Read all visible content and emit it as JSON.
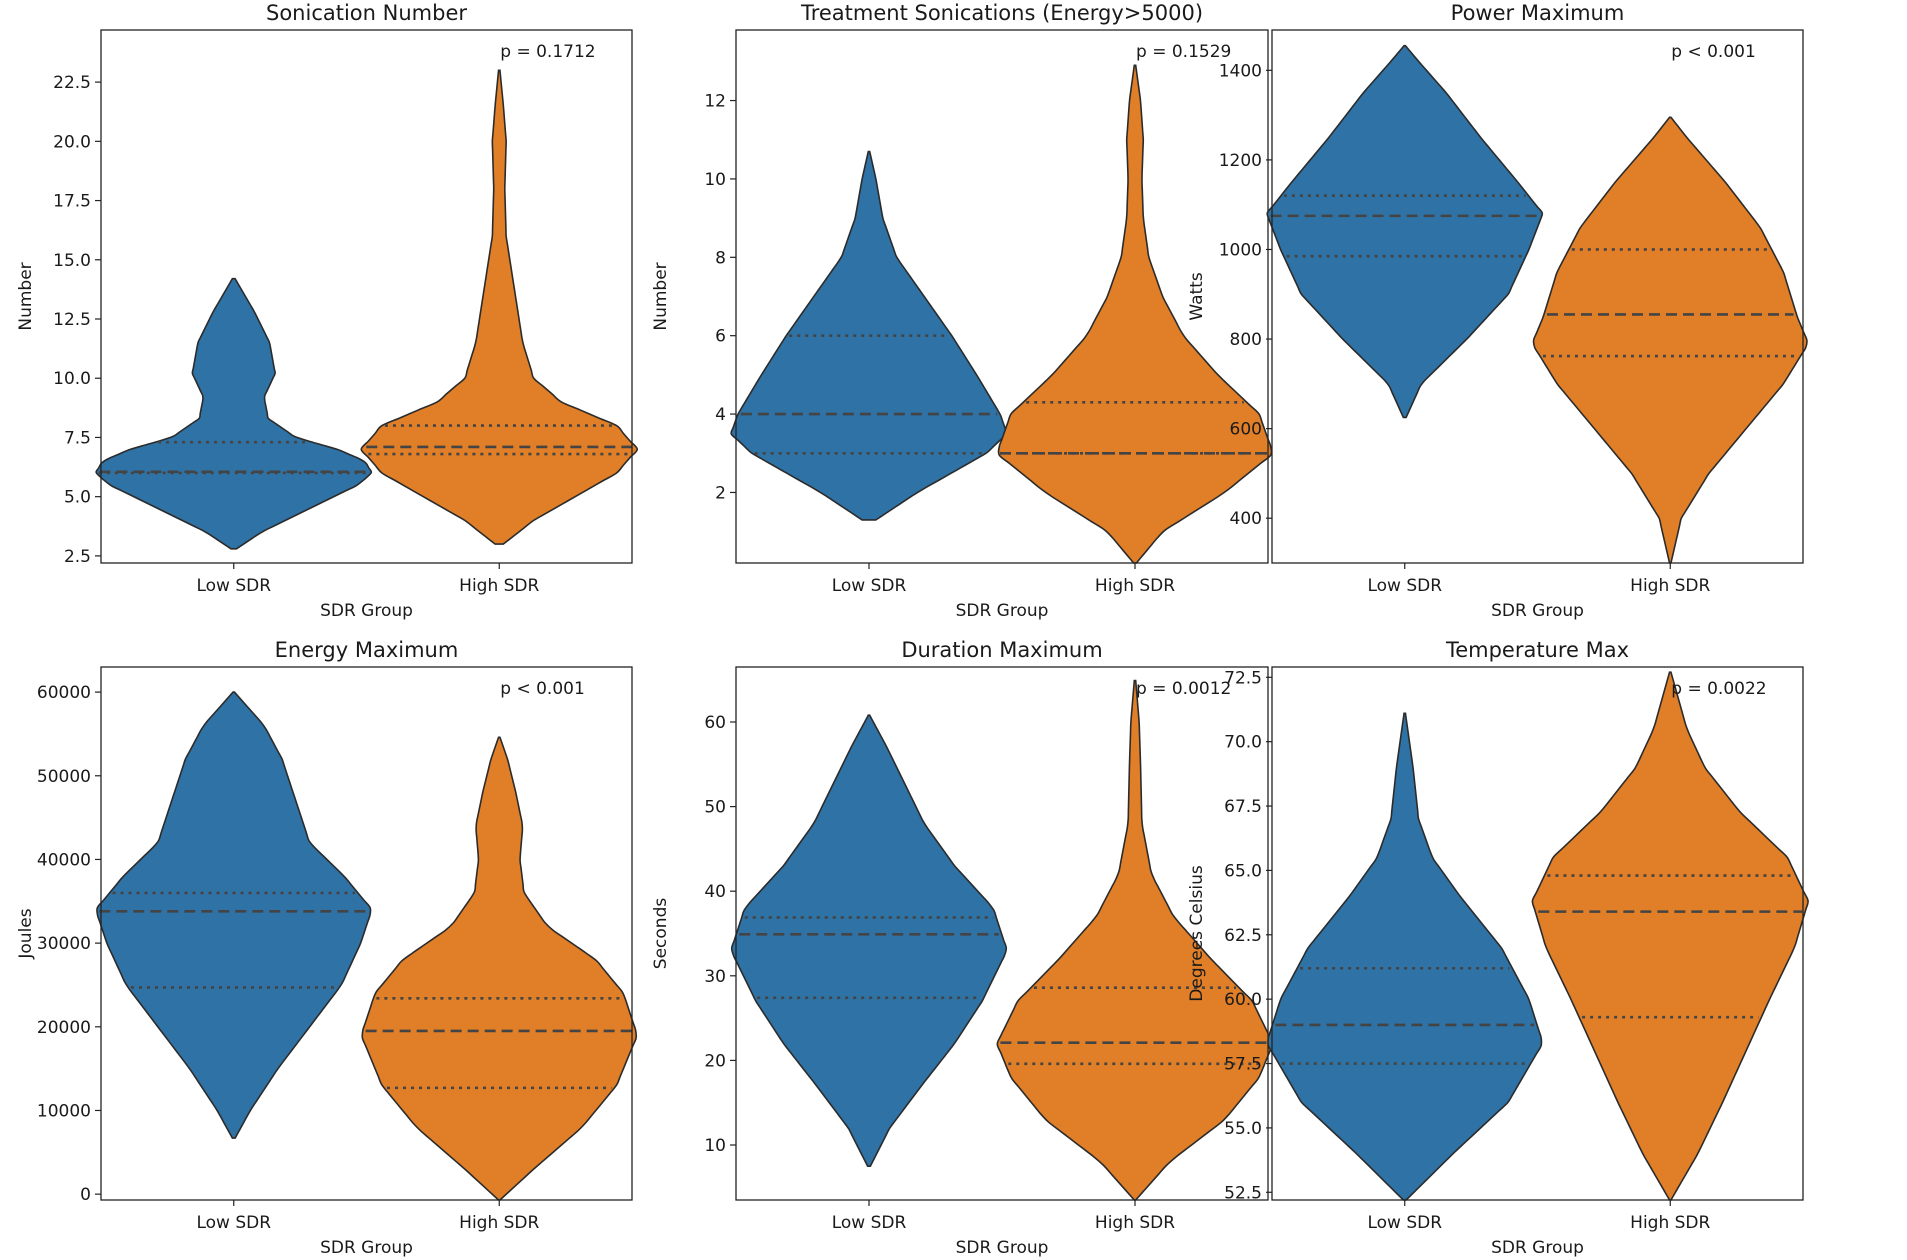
{
  "chart_data": [
    {
      "type": "violin",
      "title": "Sonication Number",
      "xlabel": "SDR Group",
      "ylabel": "Number",
      "categories": [
        "Low SDR",
        "High SDR"
      ],
      "ylim": [
        2.2,
        24.7
      ],
      "yticks": [
        2.5,
        5.0,
        7.5,
        10.0,
        12.5,
        15.0,
        17.5,
        20.0,
        22.5
      ],
      "ytick_labels": [
        "2.5",
        "5.0",
        "7.5",
        "10.0",
        "12.5",
        "15.0",
        "17.5",
        "20.0",
        "22.5"
      ],
      "annotation": "p = 0.1712",
      "violins": [
        {
          "group": "Low SDR",
          "color": "#2f72a5",
          "min": 2.8,
          "max": 14.2,
          "q1": 6.0,
          "median": 6.05,
          "q3": 7.3,
          "density": [
            [
              2.8,
              0.02
            ],
            [
              3.5,
              0.2
            ],
            [
              4.5,
              0.55
            ],
            [
              5.5,
              0.9
            ],
            [
              6.0,
              1.0
            ],
            [
              6.5,
              0.95
            ],
            [
              7.0,
              0.75
            ],
            [
              7.5,
              0.45
            ],
            [
              8.3,
              0.25
            ],
            [
              9.2,
              0.22
            ],
            [
              10.2,
              0.3
            ],
            [
              11.5,
              0.26
            ],
            [
              12.8,
              0.15
            ],
            [
              13.8,
              0.05
            ],
            [
              14.2,
              0.01
            ]
          ]
        },
        {
          "group": "High SDR",
          "color": "#e07f28",
          "min": 3.0,
          "max": 23.0,
          "q1": 6.8,
          "median": 7.1,
          "q3": 8.0,
          "density": [
            [
              3.0,
              0.03
            ],
            [
              4.0,
              0.25
            ],
            [
              5.0,
              0.55
            ],
            [
              6.0,
              0.85
            ],
            [
              7.0,
              1.0
            ],
            [
              8.0,
              0.85
            ],
            [
              9.0,
              0.45
            ],
            [
              10.0,
              0.25
            ],
            [
              11.5,
              0.17
            ],
            [
              13.0,
              0.13
            ],
            [
              14.5,
              0.09
            ],
            [
              16.0,
              0.05
            ],
            [
              18.0,
              0.04
            ],
            [
              20.0,
              0.05
            ],
            [
              21.5,
              0.03
            ],
            [
              23.0,
              0.005
            ]
          ]
        }
      ]
    },
    {
      "type": "violin",
      "title": "Treatment Sonications (Energy>5000)",
      "xlabel": "SDR Group",
      "ylabel": "Number",
      "categories": [
        "Low SDR",
        "High SDR"
      ],
      "ylim": [
        0.2,
        13.8
      ],
      "yticks": [
        2,
        4,
        6,
        8,
        10,
        12
      ],
      "ytick_labels": [
        "2",
        "4",
        "6",
        "8",
        "10",
        "12"
      ],
      "annotation": "p = 0.1529",
      "violins": [
        {
          "group": "Low SDR",
          "color": "#2f72a5",
          "min": 1.3,
          "max": 10.7,
          "q1": 3.0,
          "median": 4.0,
          "q3": 6.0,
          "density": [
            [
              1.3,
              0.05
            ],
            [
              2.0,
              0.35
            ],
            [
              3.0,
              0.85
            ],
            [
              3.5,
              1.0
            ],
            [
              4.0,
              0.95
            ],
            [
              5.0,
              0.78
            ],
            [
              6.0,
              0.6
            ],
            [
              7.0,
              0.4
            ],
            [
              8.0,
              0.2
            ],
            [
              9.0,
              0.1
            ],
            [
              10.0,
              0.05
            ],
            [
              10.7,
              0.005
            ]
          ]
        },
        {
          "group": "High SDR",
          "color": "#e07f28",
          "min": 0.2,
          "max": 12.9,
          "q1": 3.0,
          "median": 3.0,
          "q3": 4.3,
          "density": [
            [
              0.2,
              0.01
            ],
            [
              1.0,
              0.2
            ],
            [
              2.0,
              0.65
            ],
            [
              3.0,
              1.0
            ],
            [
              4.0,
              0.9
            ],
            [
              5.0,
              0.6
            ],
            [
              6.0,
              0.35
            ],
            [
              7.0,
              0.2
            ],
            [
              8.0,
              0.1
            ],
            [
              9.0,
              0.06
            ],
            [
              10.0,
              0.05
            ],
            [
              11.0,
              0.06
            ],
            [
              12.0,
              0.04
            ],
            [
              12.9,
              0.005
            ]
          ]
        }
      ]
    },
    {
      "type": "violin",
      "title": "Power Maximum",
      "xlabel": "SDR Group",
      "ylabel": "Watts",
      "categories": [
        "Low SDR",
        "High SDR"
      ],
      "ylim": [
        300,
        1490
      ],
      "yticks": [
        400,
        600,
        800,
        1000,
        1200,
        1400
      ],
      "ytick_labels": [
        "400",
        "600",
        "800",
        "1000",
        "1200",
        "1400"
      ],
      "annotation": "p < 0.001",
      "violins": [
        {
          "group": "Low SDR",
          "color": "#2f72a5",
          "min": 625,
          "max": 1455,
          "q1": 985,
          "median": 1075,
          "q3": 1120,
          "density": [
            [
              625,
              0.01
            ],
            [
              700,
              0.12
            ],
            [
              800,
              0.45
            ],
            [
              900,
              0.75
            ],
            [
              1000,
              0.9
            ],
            [
              1080,
              1.0
            ],
            [
              1150,
              0.82
            ],
            [
              1250,
              0.55
            ],
            [
              1350,
              0.3
            ],
            [
              1420,
              0.1
            ],
            [
              1455,
              0.005
            ]
          ]
        },
        {
          "group": "High SDR",
          "color": "#e07f28",
          "min": 300,
          "max": 1295,
          "q1": 762,
          "median": 855,
          "q3": 1000,
          "density": [
            [
              300,
              0.005
            ],
            [
              400,
              0.08
            ],
            [
              500,
              0.28
            ],
            [
              600,
              0.55
            ],
            [
              700,
              0.82
            ],
            [
              790,
              1.0
            ],
            [
              850,
              0.92
            ],
            [
              950,
              0.82
            ],
            [
              1050,
              0.65
            ],
            [
              1150,
              0.4
            ],
            [
              1250,
              0.12
            ],
            [
              1295,
              0.005
            ]
          ]
        }
      ]
    },
    {
      "type": "violin",
      "title": "Energy Maximum",
      "xlabel": "SDR Group",
      "ylabel": "Joules",
      "categories": [
        "Low SDR",
        "High SDR"
      ],
      "ylim": [
        -700,
        63000
      ],
      "yticks": [
        0,
        10000,
        20000,
        30000,
        40000,
        50000,
        60000
      ],
      "ytick_labels": [
        "0",
        "10000",
        "20000",
        "30000",
        "40000",
        "50000",
        "60000"
      ],
      "annotation": "p < 0.001",
      "violins": [
        {
          "group": "Low SDR",
          "color": "#2f72a5",
          "min": 6700,
          "max": 60000,
          "q1": 24700,
          "median": 33800,
          "q3": 36000,
          "density": [
            [
              6700,
              0.01
            ],
            [
              10000,
              0.12
            ],
            [
              15000,
              0.32
            ],
            [
              20000,
              0.55
            ],
            [
              25000,
              0.78
            ],
            [
              30000,
              0.92
            ],
            [
              34000,
              1.0
            ],
            [
              38000,
              0.8
            ],
            [
              42000,
              0.55
            ],
            [
              47000,
              0.45
            ],
            [
              52000,
              0.35
            ],
            [
              56000,
              0.22
            ],
            [
              60000,
              0.005
            ]
          ]
        },
        {
          "group": "High SDR",
          "color": "#e07f28",
          "min": -700,
          "max": 54600,
          "q1": 12700,
          "median": 19500,
          "q3": 23400,
          "density": [
            [
              -700,
              0.005
            ],
            [
              3000,
              0.25
            ],
            [
              8000,
              0.6
            ],
            [
              13000,
              0.85
            ],
            [
              19000,
              1.0
            ],
            [
              24000,
              0.9
            ],
            [
              28000,
              0.7
            ],
            [
              32000,
              0.35
            ],
            [
              36000,
              0.18
            ],
            [
              40000,
              0.15
            ],
            [
              44000,
              0.17
            ],
            [
              48000,
              0.12
            ],
            [
              52000,
              0.06
            ],
            [
              54600,
              0.005
            ]
          ]
        }
      ]
    },
    {
      "type": "violin",
      "title": "Duration Maximum",
      "xlabel": "SDR Group",
      "ylabel": "Seconds",
      "categories": [
        "Low SDR",
        "High SDR"
      ],
      "ylim": [
        3.5,
        66.5
      ],
      "yticks": [
        10,
        20,
        30,
        40,
        50,
        60
      ],
      "ytick_labels": [
        "10",
        "20",
        "30",
        "40",
        "50",
        "60"
      ],
      "annotation": "p = 0.0012",
      "violins": [
        {
          "group": "Low SDR",
          "color": "#2f72a5",
          "min": 7.5,
          "max": 60.8,
          "q1": 27.4,
          "median": 34.9,
          "q3": 36.9,
          "density": [
            [
              7.5,
              0.01
            ],
            [
              12,
              0.15
            ],
            [
              17,
              0.38
            ],
            [
              22,
              0.62
            ],
            [
              27,
              0.82
            ],
            [
              33,
              1.0
            ],
            [
              38,
              0.9
            ],
            [
              43,
              0.62
            ],
            [
              48,
              0.4
            ],
            [
              53,
              0.25
            ],
            [
              57,
              0.13
            ],
            [
              60.8,
              0.005
            ]
          ]
        },
        {
          "group": "High SDR",
          "color": "#e07f28",
          "min": 3.5,
          "max": 64.9,
          "q1": 19.6,
          "median": 22.1,
          "q3": 28.6,
          "density": [
            [
              3.5,
              0.005
            ],
            [
              8,
              0.25
            ],
            [
              13,
              0.65
            ],
            [
              18,
              0.9
            ],
            [
              22,
              1.0
            ],
            [
              27,
              0.85
            ],
            [
              32,
              0.55
            ],
            [
              37,
              0.28
            ],
            [
              42,
              0.12
            ],
            [
              48,
              0.05
            ],
            [
              55,
              0.04
            ],
            [
              60,
              0.03
            ],
            [
              64.9,
              0.005
            ]
          ]
        }
      ]
    },
    {
      "type": "violin",
      "title": "Temperature Max",
      "xlabel": "SDR Group",
      "ylabel": "Degrees Celsius",
      "categories": [
        "Low SDR",
        "High SDR"
      ],
      "ylim": [
        52.2,
        72.9
      ],
      "yticks": [
        52.5,
        55.0,
        57.5,
        60.0,
        62.5,
        65.0,
        67.5,
        70.0,
        72.5
      ],
      "ytick_labels": [
        "52.5",
        "55.0",
        "57.5",
        "60.0",
        "62.5",
        "65.0",
        "67.5",
        "70.0",
        "72.5"
      ],
      "annotation": "p = 0.0022",
      "violins": [
        {
          "group": "Low SDR",
          "color": "#2f72a5",
          "min": 52.2,
          "max": 71.1,
          "q1": 57.5,
          "median": 59.0,
          "q3": 61.2,
          "density": [
            [
              52.2,
              0.01
            ],
            [
              54,
              0.35
            ],
            [
              56,
              0.75
            ],
            [
              58.3,
              1.0
            ],
            [
              60,
              0.9
            ],
            [
              62,
              0.7
            ],
            [
              64,
              0.4
            ],
            [
              65.5,
              0.2
            ],
            [
              67,
              0.1
            ],
            [
              69,
              0.06
            ],
            [
              71.1,
              0.005
            ]
          ]
        },
        {
          "group": "High SDR",
          "color": "#e07f28",
          "min": 52.2,
          "max": 72.7,
          "q1": 59.3,
          "median": 63.4,
          "q3": 64.8,
          "density": [
            [
              52.2,
              0.005
            ],
            [
              54,
              0.2
            ],
            [
              56,
              0.38
            ],
            [
              58,
              0.55
            ],
            [
              60,
              0.72
            ],
            [
              62,
              0.9
            ],
            [
              63.8,
              1.0
            ],
            [
              65.5,
              0.85
            ],
            [
              67.3,
              0.5
            ],
            [
              69,
              0.25
            ],
            [
              70.5,
              0.12
            ],
            [
              72.7,
              0.005
            ]
          ]
        }
      ]
    }
  ]
}
